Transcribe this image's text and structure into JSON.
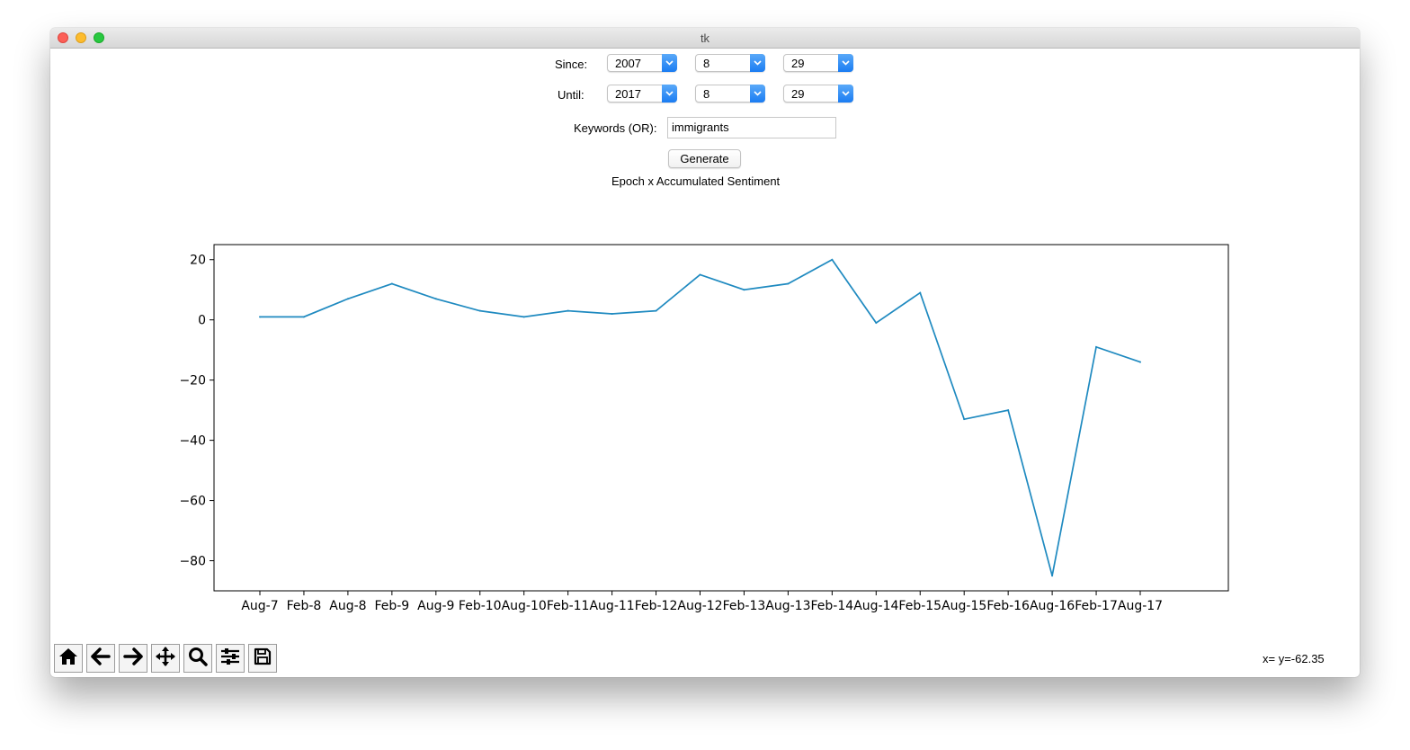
{
  "window": {
    "title": "tk"
  },
  "form": {
    "since": {
      "label": "Since:",
      "year": "2007",
      "month": "8",
      "day": "29"
    },
    "until": {
      "label": "Until:",
      "year": "2017",
      "month": "8",
      "day": "29"
    },
    "keywords": {
      "label": "Keywords (OR):",
      "value": "immigrants"
    },
    "generate_label": "Generate",
    "plot_title": "Epoch x Accumulated Sentiment"
  },
  "chart_data": {
    "type": "line",
    "categories": [
      "Aug-7",
      "Feb-8",
      "Aug-8",
      "Feb-9",
      "Aug-9",
      "Feb-10",
      "Aug-10",
      "Feb-11",
      "Aug-11",
      "Feb-12",
      "Aug-12",
      "Feb-13",
      "Aug-13",
      "Feb-14",
      "Aug-14",
      "Feb-15",
      "Aug-15",
      "Feb-16",
      "Aug-16",
      "Feb-17",
      "Aug-17"
    ],
    "x": [
      0,
      1,
      2,
      3,
      4,
      5,
      6,
      7,
      8,
      9,
      10,
      11,
      12,
      13,
      14,
      15,
      16,
      17,
      18,
      19,
      20
    ],
    "values": [
      1,
      1,
      7,
      12,
      7,
      3,
      1,
      3,
      2,
      3,
      15,
      10,
      12,
      20,
      -1,
      9,
      -33,
      -30,
      -85,
      -9,
      -14
    ],
    "ytick_values": [
      20,
      0,
      -20,
      -40,
      -60,
      -80
    ],
    "ytick_labels": [
      "20",
      "0",
      "−20",
      "−40",
      "−60",
      "−80"
    ],
    "ylim": [
      -90,
      25
    ],
    "title": "",
    "xlabel": "",
    "ylabel": "",
    "line_color": "#1f8ac0",
    "grid": false
  },
  "toolbar": {
    "buttons": [
      {
        "name": "home-button",
        "icon": "home-icon"
      },
      {
        "name": "back-button",
        "icon": "arrow-left-icon"
      },
      {
        "name": "forward-button",
        "icon": "arrow-right-icon"
      },
      {
        "name": "pan-button",
        "icon": "move-icon"
      },
      {
        "name": "zoom-button",
        "icon": "search-icon"
      },
      {
        "name": "configure-subplots-button",
        "icon": "sliders-icon"
      },
      {
        "name": "save-button",
        "icon": "floppy-disk-icon"
      }
    ],
    "coordinates": "x= y=-62.35"
  }
}
